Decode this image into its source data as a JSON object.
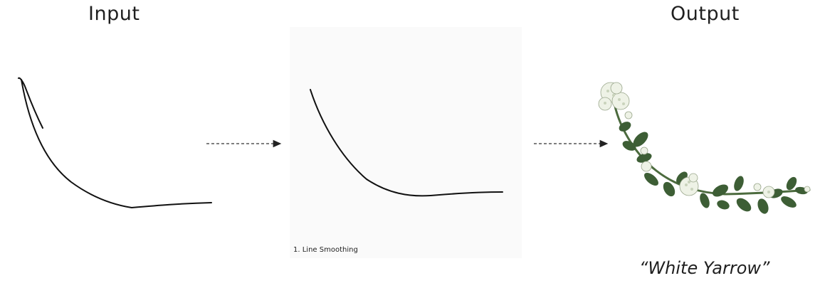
{
  "headings": {
    "input": "Input",
    "output": "Output"
  },
  "step": {
    "caption": "1. Line Smoothing"
  },
  "result": {
    "label": "“White Yarrow”"
  },
  "colors": {
    "stroke": "#111111",
    "panel": "#fafafa",
    "leaf": "#3d5e35",
    "flower": "#eef2e6",
    "arrow": "#333333"
  },
  "icons": [
    "dashed-arrow",
    "hand-drawn-stroke",
    "smoothed-stroke",
    "yarrow-illustration"
  ]
}
